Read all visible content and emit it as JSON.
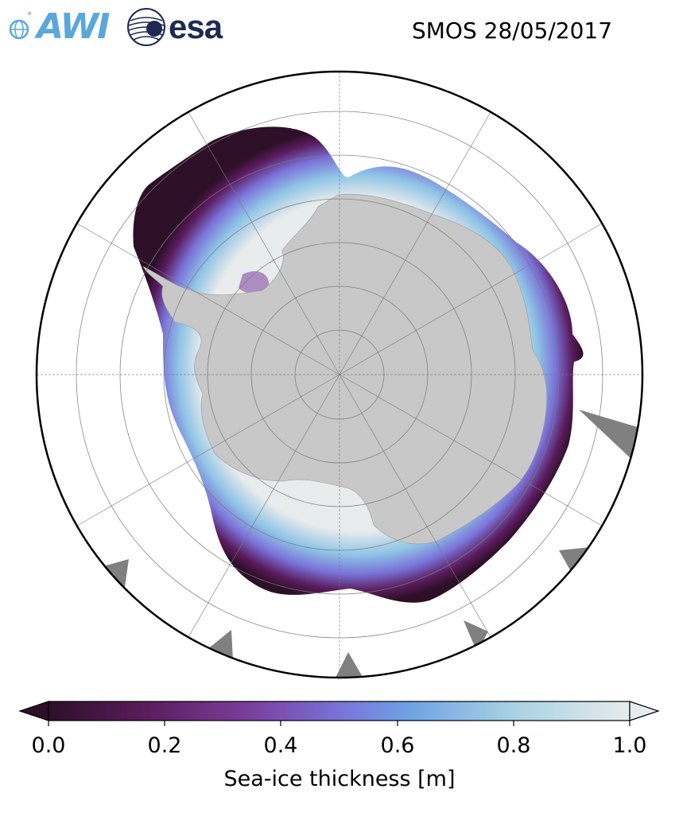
{
  "title": "SMOS 28/05/2017",
  "logos": {
    "awi": {
      "text": "AWI",
      "color": "#5aa7dc"
    },
    "esa": {
      "text": "esa",
      "color": "#1e2a52"
    }
  },
  "map": {
    "projection": "south-polar-stereographic",
    "land_color": "#c8c8c8",
    "missing_color": "#808080",
    "ocean_color": "#ffffff",
    "grid": true
  },
  "colorbar": {
    "label": "Sea-ice thickness [m]",
    "min": 0.0,
    "max": 1.0,
    "ticks": [
      "0.0",
      "0.2",
      "0.4",
      "0.6",
      "0.8",
      "1.0"
    ],
    "extend": "both",
    "stops": [
      "#2d0f28",
      "#5b1c5e",
      "#7b3f9e",
      "#7a72d8",
      "#6fa2e6",
      "#a9d2e4",
      "#e6ecec"
    ]
  }
}
